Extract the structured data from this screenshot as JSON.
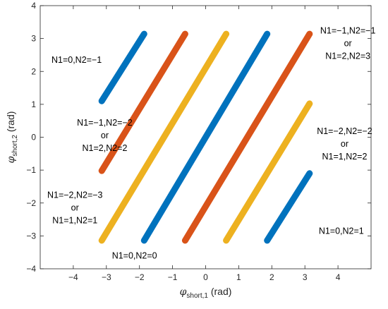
{
  "chart_data": {
    "type": "line",
    "xlabel": {
      "symbol": "φ",
      "sub": "short,1",
      "unit": " (rad)"
    },
    "ylabel": {
      "symbol": "φ",
      "sub": "short,2",
      "unit": " (rad)"
    },
    "xlim": [
      -5,
      5
    ],
    "ylim": [
      -4,
      4
    ],
    "xticks": [
      "−4",
      "−3",
      "−2",
      "−1",
      "0",
      "1",
      "2",
      "3",
      "4"
    ],
    "yticks": [
      "−4",
      "−3",
      "−2",
      "−1",
      "0",
      "1",
      "2",
      "3",
      "4"
    ],
    "grid": false,
    "series": [
      {
        "color": "#0072BD",
        "x": [
          -3.14,
          -1.86
        ],
        "y": [
          1.1,
          3.14
        ]
      },
      {
        "color": "#D95319",
        "x": [
          -3.14,
          -0.62
        ],
        "y": [
          -1.02,
          3.14
        ]
      },
      {
        "color": "#EDB120",
        "x": [
          -3.14,
          0.62
        ],
        "y": [
          -3.14,
          3.14
        ]
      },
      {
        "color": "#0072BD",
        "x": [
          -1.86,
          1.86
        ],
        "y": [
          -3.14,
          3.14
        ]
      },
      {
        "color": "#D95319",
        "x": [
          -0.62,
          3.14
        ],
        "y": [
          -3.14,
          3.14
        ]
      },
      {
        "color": "#EDB120",
        "x": [
          0.62,
          3.14
        ],
        "y": [
          -3.14,
          1.02
        ]
      },
      {
        "color": "#0072BD",
        "x": [
          1.86,
          3.14
        ],
        "y": [
          -3.14,
          -1.1
        ]
      }
    ],
    "annotations": [
      {
        "lines": [
          "N1=0,N2=−1"
        ],
        "x": -3.9,
        "y": 2.35
      },
      {
        "lines": [
          "N1=−1,N2=−1",
          "or",
          "N1=2,N2=3"
        ],
        "x": 4.3,
        "y": 2.85
      },
      {
        "lines": [
          "N1=−1,N2=−2",
          "or",
          "N1=2,N2=2"
        ],
        "x": -3.05,
        "y": 0.05
      },
      {
        "lines": [
          "N1=−2,N2=−2",
          "or",
          "N1=1,N2=2"
        ],
        "x": 4.2,
        "y": -0.2
      },
      {
        "lines": [
          "N1=−2,N2=−3",
          "or",
          "N1=1,N2=1"
        ],
        "x": -3.95,
        "y": -2.15
      },
      {
        "lines": [
          "N1=0,N2=1"
        ],
        "x": 4.1,
        "y": -2.85
      },
      {
        "lines": [
          "N1=0,N2=0"
        ],
        "x": -2.15,
        "y": -3.6
      }
    ]
  }
}
